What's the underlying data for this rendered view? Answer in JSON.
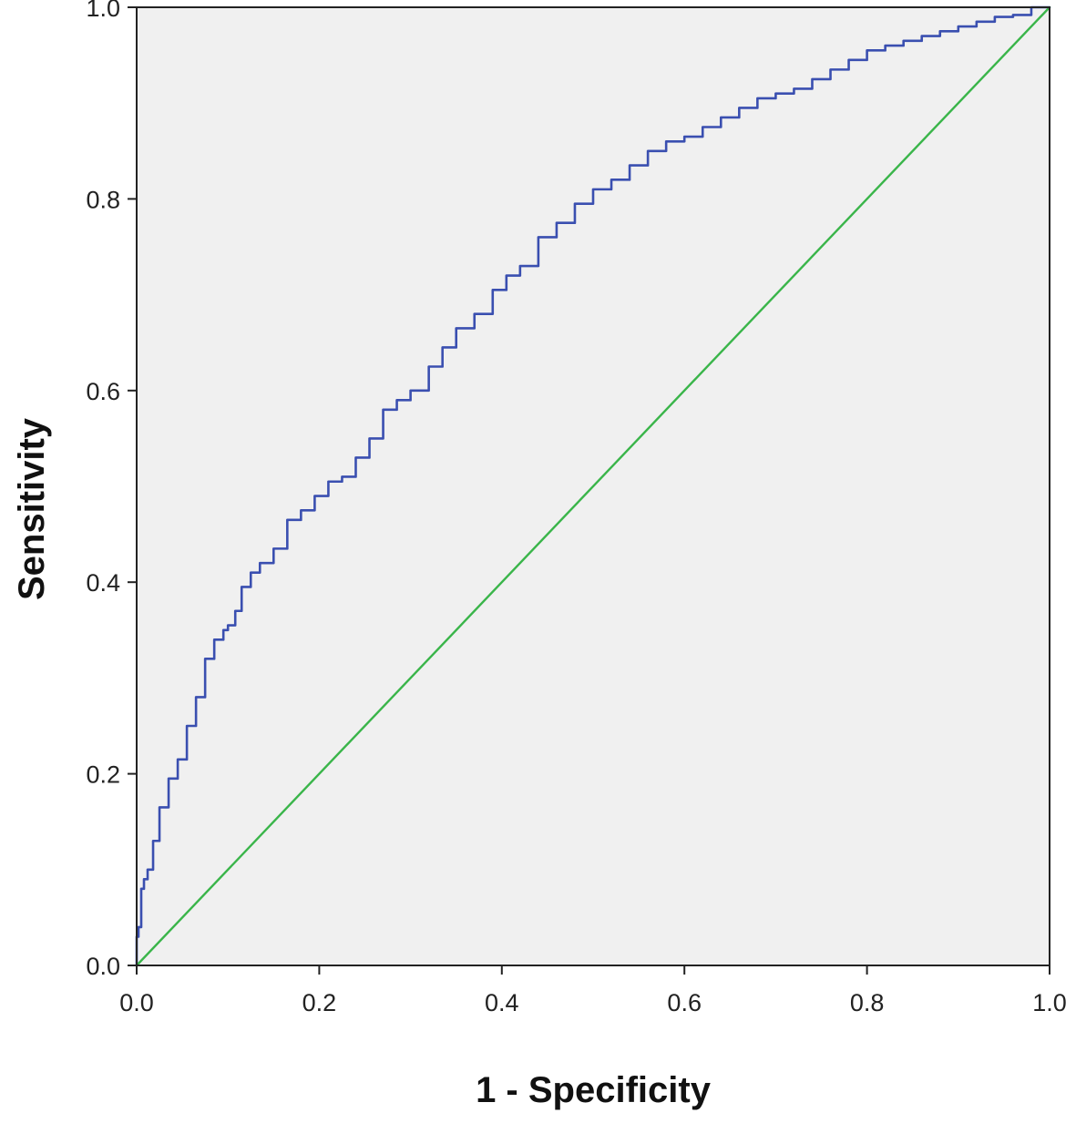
{
  "chart_data": {
    "type": "line",
    "xlabel": "1 - Specificity",
    "ylabel": "Sensitivity",
    "xlim": [
      0,
      1
    ],
    "ylim": [
      0,
      1
    ],
    "x_ticks": [
      "0.0",
      "0.2",
      "0.4",
      "0.6",
      "0.8",
      "1.0"
    ],
    "y_ticks": [
      "0.0",
      "0.2",
      "0.4",
      "0.6",
      "0.8",
      "1.0"
    ],
    "grid": false,
    "legend": "none",
    "plot_background": "#f0f0f0",
    "series": [
      {
        "color": "#3a4fb0",
        "x": [
          0,
          0.002,
          0.005,
          0.008,
          0.012,
          0.018,
          0.025,
          0.035,
          0.045,
          0.055,
          0.065,
          0.075,
          0.085,
          0.095,
          0.1,
          0.108,
          0.115,
          0.125,
          0.135,
          0.15,
          0.165,
          0.18,
          0.195,
          0.21,
          0.225,
          0.24,
          0.255,
          0.27,
          0.285,
          0.3,
          0.32,
          0.335,
          0.35,
          0.37,
          0.39,
          0.405,
          0.42,
          0.44,
          0.46,
          0.48,
          0.5,
          0.52,
          0.54,
          0.56,
          0.58,
          0.6,
          0.62,
          0.64,
          0.66,
          0.68,
          0.7,
          0.72,
          0.74,
          0.76,
          0.78,
          0.8,
          0.82,
          0.84,
          0.86,
          0.88,
          0.9,
          0.92,
          0.94,
          0.96,
          0.98,
          1.0
        ],
        "y": [
          0,
          0.03,
          0.04,
          0.08,
          0.09,
          0.1,
          0.13,
          0.165,
          0.195,
          0.215,
          0.25,
          0.28,
          0.32,
          0.34,
          0.35,
          0.355,
          0.37,
          0.395,
          0.41,
          0.42,
          0.435,
          0.465,
          0.475,
          0.49,
          0.505,
          0.51,
          0.53,
          0.55,
          0.58,
          0.59,
          0.6,
          0.625,
          0.645,
          0.665,
          0.68,
          0.705,
          0.72,
          0.73,
          0.76,
          0.775,
          0.795,
          0.81,
          0.82,
          0.835,
          0.85,
          0.86,
          0.865,
          0.875,
          0.885,
          0.895,
          0.905,
          0.91,
          0.915,
          0.925,
          0.935,
          0.945,
          0.955,
          0.96,
          0.965,
          0.97,
          0.975,
          0.98,
          0.985,
          0.99,
          0.992,
          1.0
        ]
      },
      {
        "color": "#3ab54a",
        "x": [
          0,
          1
        ],
        "y": [
          0,
          1
        ]
      }
    ]
  }
}
